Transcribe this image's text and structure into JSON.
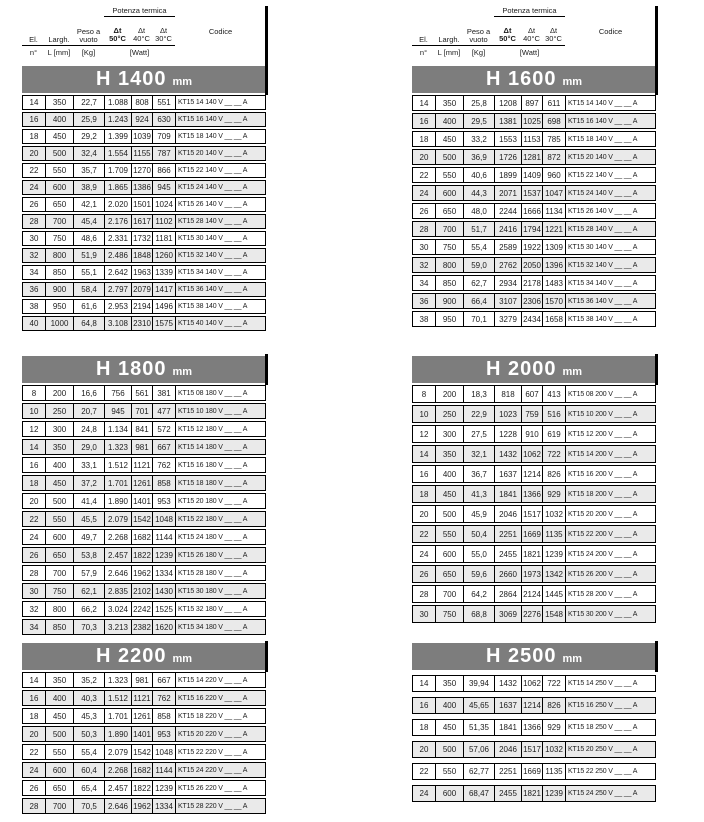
{
  "page": {
    "type": "radiator-technical-data-sheet",
    "background": "#ffffff"
  },
  "colors": {
    "banner_bg": "#7d7d7d",
    "banner_text": "#ffffff",
    "stripe_bg": "#eaeaea",
    "border": "#000000",
    "text": "#1c1c1c"
  },
  "header_labels": {
    "el_top": "El.",
    "el_bottom": "n°",
    "largh_top": "Largh.",
    "largh_bottom": "L [mm]",
    "peso_line1": "Peso a",
    "peso_line2": "vuoto",
    "peso_unit": "[Kg]",
    "potenza_group": "Potenza termica",
    "dt_symbol": "Δt",
    "dt50": "50°C",
    "dt40": "40°C",
    "dt30": "30°C",
    "watt_unit": "[Watt]",
    "codice": "Codice"
  },
  "column_keys": [
    "el_n",
    "largh_L_mm",
    "peso_kg",
    "watt_dt50",
    "watt_dt40",
    "watt_dt30",
    "codice"
  ],
  "tables": [
    {
      "title": "H 1400",
      "unit": "mm",
      "columns_header": true,
      "rows": [
        [
          14,
          350,
          "22,7",
          "1.088",
          808,
          551,
          "KT15 14 140 V __ __ A"
        ],
        [
          16,
          400,
          "25,9",
          "1.243",
          924,
          630,
          "KT15 16 140 V __ __ A"
        ],
        [
          18,
          450,
          "29,2",
          "1.399",
          1039,
          709,
          "KT15 18 140 V __ __ A"
        ],
        [
          20,
          500,
          "32,4",
          "1.554",
          1155,
          787,
          "KT15 20 140 V __ __ A"
        ],
        [
          22,
          550,
          "35,7",
          "1.709",
          1270,
          866,
          "KT15 22 140 V __ __ A"
        ],
        [
          24,
          600,
          "38,9",
          "1.865",
          1386,
          945,
          "KT15 24 140 V __ __ A"
        ],
        [
          26,
          650,
          "42,1",
          "2.020",
          1501,
          1024,
          "KT15 26 140 V __ __ A"
        ],
        [
          28,
          700,
          "45,4",
          "2.176",
          1617,
          1102,
          "KT15 28 140 V __ __ A"
        ],
        [
          30,
          750,
          "48,6",
          "2.331",
          1732,
          1181,
          "KT15 30 140 V __ __ A"
        ],
        [
          32,
          800,
          "51,9",
          "2.486",
          1848,
          1260,
          "KT15 32 140 V __ __ A"
        ],
        [
          34,
          850,
          "55,1",
          "2.642",
          1963,
          1339,
          "KT15 34 140 V __ __ A"
        ],
        [
          36,
          900,
          "58,4",
          "2.797",
          2079,
          1417,
          "KT15 36 140 V __ __ A"
        ],
        [
          38,
          950,
          "61,6",
          "2.953",
          2194,
          1496,
          "KT15 38 140 V __ __ A"
        ],
        [
          40,
          1000,
          "64,8",
          "3.108",
          2310,
          1575,
          "KT15 40 140 V __ __ A"
        ]
      ]
    },
    {
      "title": "H 1600",
      "unit": "mm",
      "columns_header": true,
      "rows": [
        [
          14,
          350,
          "25,8",
          1208,
          897,
          611,
          "KT15 14 140 V __ __ A"
        ],
        [
          16,
          400,
          "29,5",
          1381,
          1025,
          698,
          "KT15 16 140 V __ __ A"
        ],
        [
          18,
          450,
          "33,2",
          1553,
          1153,
          785,
          "KT15 18 140 V __ __ A"
        ],
        [
          20,
          500,
          "36,9",
          1726,
          1281,
          872,
          "KT15 20 140 V __ __ A"
        ],
        [
          22,
          550,
          "40,6",
          1899,
          1409,
          960,
          "KT15 22 140 V __ __ A"
        ],
        [
          24,
          600,
          "44,3",
          2071,
          1537,
          1047,
          "KT15 24 140 V __ __ A"
        ],
        [
          26,
          650,
          "48,0",
          2244,
          1666,
          1134,
          "KT15 26 140 V __ __ A"
        ],
        [
          28,
          700,
          "51,7",
          2416,
          1794,
          1221,
          "KT15 28 140 V __ __ A"
        ],
        [
          30,
          750,
          "55,4",
          2589,
          1922,
          1309,
          "KT15 30 140 V __ __ A"
        ],
        [
          32,
          800,
          "59,0",
          2762,
          2050,
          1396,
          "KT15 32 140 V __ __ A"
        ],
        [
          34,
          850,
          "62,7",
          2934,
          2178,
          1483,
          "KT15 34 140 V __ __ A"
        ],
        [
          36,
          900,
          "66,4",
          3107,
          2306,
          1570,
          "KT15 36 140 V __ __ A"
        ],
        [
          38,
          950,
          "70,1",
          3279,
          2434,
          1658,
          "KT15 38 140 V __ __ A"
        ]
      ]
    },
    {
      "title": "H 1800",
      "unit": "mm",
      "columns_header": false,
      "rows": [
        [
          8,
          200,
          "16,6",
          756,
          561,
          381,
          "KT15 08 180 V __ __ A"
        ],
        [
          10,
          250,
          "20,7",
          945,
          701,
          477,
          "KT15 10 180 V __ __ A"
        ],
        [
          12,
          300,
          "24,8",
          "1.134",
          841,
          572,
          "KT15 12 180 V __ __ A"
        ],
        [
          14,
          350,
          "29,0",
          "1.323",
          981,
          667,
          "KT15 14 180 V __ __ A"
        ],
        [
          16,
          400,
          "33,1",
          "1.512",
          1121,
          762,
          "KT15 16 180 V __ __ A"
        ],
        [
          18,
          450,
          "37,2",
          "1.701",
          1261,
          858,
          "KT15 18 180 V __ __ A"
        ],
        [
          20,
          500,
          "41,4",
          "1.890",
          1401,
          953,
          "KT15 20 180 V __ __ A"
        ],
        [
          22,
          550,
          "45,5",
          "2.079",
          1542,
          1048,
          "KT15 22 180 V __ __ A"
        ],
        [
          24,
          600,
          "49,7",
          "2.268",
          1682,
          1144,
          "KT15 24 180 V __ __ A"
        ],
        [
          26,
          650,
          "53,8",
          "2.457",
          1822,
          1239,
          "KT15 26 180 V __ __ A"
        ],
        [
          28,
          700,
          "57,9",
          "2.646",
          1962,
          1334,
          "KT15 28 180 V __ __ A"
        ],
        [
          30,
          750,
          "62,1",
          "2.835",
          2102,
          1430,
          "KT15 30 180 V __ __ A"
        ],
        [
          32,
          800,
          "66,2",
          "3.024",
          2242,
          1525,
          "KT15 32 180 V __ __ A"
        ],
        [
          34,
          850,
          "70,3",
          "3.213",
          2382,
          1620,
          "KT15 34 180 V __ __ A"
        ]
      ]
    },
    {
      "title": "H 2000",
      "unit": "mm",
      "columns_header": false,
      "rows": [
        [
          8,
          200,
          "18,3",
          818,
          607,
          413,
          "KT15 08 200 V __ __ A"
        ],
        [
          10,
          250,
          "22,9",
          1023,
          759,
          516,
          "KT15 10 200 V __ __ A"
        ],
        [
          12,
          300,
          "27,5",
          1228,
          910,
          619,
          "KT15 12 200 V __ __ A"
        ],
        [
          14,
          350,
          "32,1",
          1432,
          1062,
          722,
          "KT15 14 200 V __ __ A"
        ],
        [
          16,
          400,
          "36,7",
          1637,
          1214,
          826,
          "KT15 16 200 V __ __ A"
        ],
        [
          18,
          450,
          "41,3",
          1841,
          1366,
          929,
          "KT15 18 200 V __ __ A"
        ],
        [
          20,
          500,
          "45,9",
          2046,
          1517,
          1032,
          "KT15 20 200 V __ __ A"
        ],
        [
          22,
          550,
          "50,4",
          2251,
          1669,
          1135,
          "KT15 22 200 V __ __ A"
        ],
        [
          24,
          600,
          "55,0",
          2455,
          1821,
          1239,
          "KT15 24 200 V __ __ A"
        ],
        [
          26,
          650,
          "59,6",
          2660,
          1973,
          1342,
          "KT15 26 200 V __ __ A"
        ],
        [
          28,
          700,
          "64,2",
          2864,
          2124,
          1445,
          "KT15 28 200 V __ __ A"
        ],
        [
          30,
          750,
          "68,8",
          3069,
          2276,
          1548,
          "KT15 30 200 V __ __ A"
        ]
      ]
    },
    {
      "title": "H 2200",
      "unit": "mm",
      "columns_header": false,
      "rows": [
        [
          14,
          350,
          "35,2",
          "1.323",
          981,
          667,
          "KT15 14 220 V __ __ A"
        ],
        [
          16,
          400,
          "40,3",
          "1.512",
          1121,
          762,
          "KT15 16 220 V __ __ A"
        ],
        [
          18,
          450,
          "45,3",
          "1.701",
          1261,
          858,
          "KT15 18 220 V __ __ A"
        ],
        [
          20,
          500,
          "50,3",
          "1.890",
          1401,
          953,
          "KT15 20 220 V __ __ A"
        ],
        [
          22,
          550,
          "55,4",
          "2.079",
          1542,
          1048,
          "KT15 22 220 V __ __ A"
        ],
        [
          24,
          600,
          "60,4",
          "2.268",
          1682,
          1144,
          "KT15 24 220 V __ __ A"
        ],
        [
          26,
          650,
          "65,4",
          "2.457",
          1822,
          1239,
          "KT15 26 220 V __ __ A"
        ],
        [
          28,
          700,
          "70,5",
          "2.646",
          1962,
          1334,
          "KT15 28 220 V __ __ A"
        ]
      ]
    },
    {
      "title": "H 2500",
      "unit": "mm",
      "columns_header": false,
      "rows": [
        [
          14,
          350,
          "39,94",
          1432,
          1062,
          722,
          "KT15 14 250 V __ __ A"
        ],
        [
          16,
          400,
          "45,65",
          1637,
          1214,
          826,
          "KT15 16 250 V __ __ A"
        ],
        [
          18,
          450,
          "51,35",
          1841,
          1366,
          929,
          "KT15 18 250 V __ __ A"
        ],
        [
          20,
          500,
          "57,06",
          2046,
          1517,
          1032,
          "KT15 20 250 V __ __ A"
        ],
        [
          22,
          550,
          "62,77",
          2251,
          1669,
          1135,
          "KT15 22 250 V __ __ A"
        ],
        [
          24,
          600,
          "68,47",
          2455,
          1821,
          1239,
          "KT15 24 250 V __ __ A"
        ]
      ]
    }
  ]
}
